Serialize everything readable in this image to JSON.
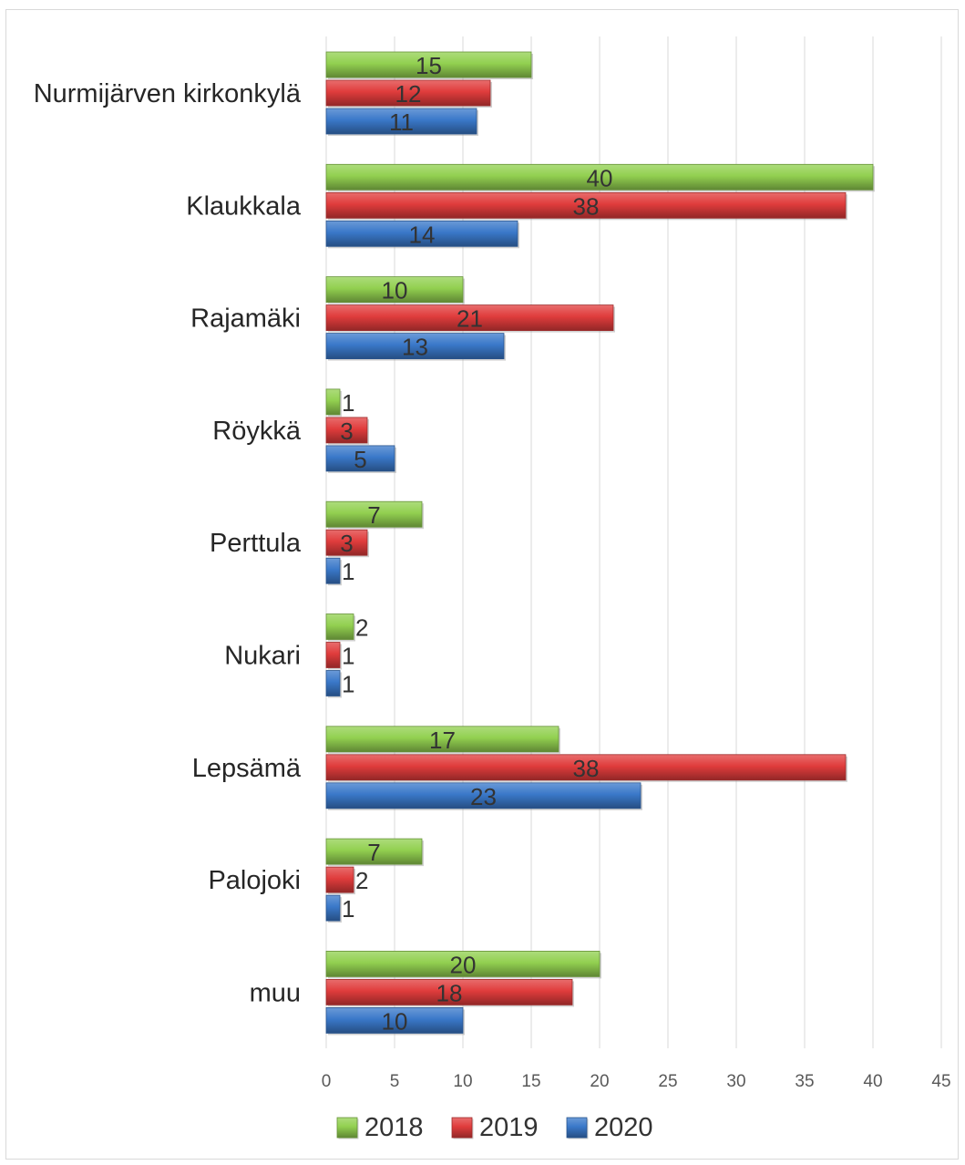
{
  "chart_data": {
    "type": "bar",
    "orientation": "horizontal",
    "title": "",
    "xlabel": "",
    "ylabel": "",
    "categories": [
      "Nurmijärven kirkonkylä",
      "Klaukkala",
      "Rajamäki",
      "Röykkä",
      "Perttula",
      "Nukari",
      "Lepsämä",
      "Palojoki",
      "muu"
    ],
    "series": [
      {
        "name": "2018",
        "color": "#92d050",
        "values": [
          15,
          40,
          10,
          1,
          7,
          2,
          17,
          7,
          20
        ]
      },
      {
        "name": "2019",
        "color": "#e03c3c",
        "values": [
          12,
          38,
          21,
          3,
          3,
          1,
          38,
          2,
          18
        ]
      },
      {
        "name": "2020",
        "color": "#3a78c9",
        "values": [
          11,
          14,
          13,
          5,
          1,
          1,
          23,
          1,
          10
        ]
      }
    ],
    "xlim": [
      0,
      45
    ],
    "xticks": [
      0,
      5,
      10,
      15,
      20,
      25,
      30,
      35,
      40,
      45
    ],
    "grid": "vertical",
    "legend": "bottom-center",
    "data_labels": true
  }
}
